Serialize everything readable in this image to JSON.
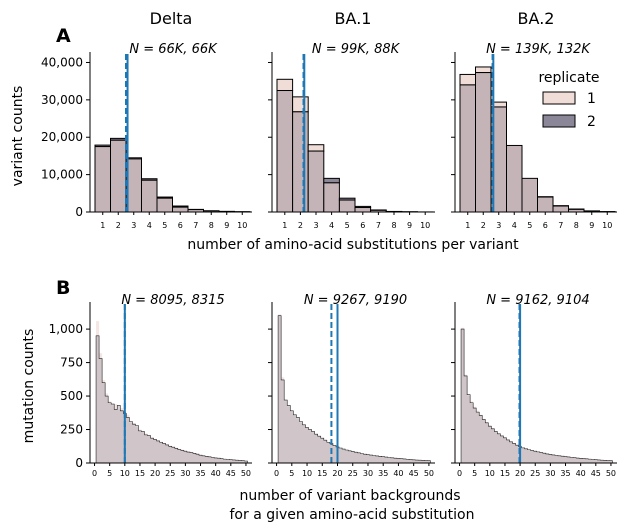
{
  "figure": {
    "xlabel_top": "number of amino-acid substitutions per variant",
    "xlabel_bottom_line1": "number of variant backgrounds",
    "xlabel_bottom_line2": "for a given amino-acid substitution",
    "legend_title": "replicate",
    "legend_labels": [
      "1",
      "2"
    ]
  },
  "colors": {
    "rep1_fill": "#f0ddd8",
    "rep2_fill": "#8c8798",
    "overlap_fill": "#c4b3b7",
    "edge": "#000000",
    "vline": "#1f77b4"
  },
  "chart_data": [
    {
      "type": "bar",
      "panel": "A",
      "column_title": "Delta",
      "subtitle": "N = 66K, 66K",
      "ylabel": "variant counts",
      "ylim": [
        0,
        42000
      ],
      "yticks": [
        0,
        10000,
        20000,
        30000,
        40000
      ],
      "categories": [
        "1",
        "2",
        "3",
        "4",
        "5",
        "6",
        "7",
        "8",
        "9",
        "10"
      ],
      "series": [
        {
          "name": "1",
          "values": [
            17500,
            19200,
            14500,
            8500,
            3700,
            1300,
            650,
            300,
            150,
            60
          ]
        },
        {
          "name": "2",
          "values": [
            17900,
            19700,
            14200,
            8900,
            4000,
            1600,
            700,
            320,
            160,
            70
          ]
        }
      ],
      "vlines": [
        {
          "x": 2.5,
          "style": "dashed"
        },
        {
          "x": 2.6,
          "style": "solid"
        }
      ]
    },
    {
      "type": "bar",
      "panel": "A",
      "column_title": "BA.1",
      "subtitle": "N = 99K, 88K",
      "ylim": [
        0,
        42000
      ],
      "categories": [
        "1",
        "2",
        "3",
        "4",
        "5",
        "6",
        "7",
        "8",
        "9",
        "10"
      ],
      "series": [
        {
          "name": "1",
          "values": [
            35500,
            30800,
            18000,
            7800,
            3200,
            1200,
            450,
            120,
            50,
            20
          ]
        },
        {
          "name": "2",
          "values": [
            32500,
            26800,
            16300,
            9000,
            3700,
            1500,
            550,
            150,
            60,
            20
          ]
        }
      ],
      "vlines": [
        {
          "x": 2.2,
          "style": "dashed"
        },
        {
          "x": 2.25,
          "style": "solid"
        }
      ]
    },
    {
      "type": "bar",
      "panel": "A",
      "column_title": "BA.2",
      "subtitle": "N = 139K, 132K",
      "ylim": [
        0,
        42000
      ],
      "categories": [
        "1",
        "2",
        "3",
        "4",
        "5",
        "6",
        "7",
        "8",
        "9",
        "10"
      ],
      "series": [
        {
          "name": "1",
          "values": [
            36800,
            38800,
            29400,
            17800,
            9000,
            4000,
            1600,
            700,
            250,
            80
          ]
        },
        {
          "name": "2",
          "values": [
            34000,
            37300,
            28100,
            17800,
            9000,
            4100,
            1700,
            800,
            300,
            100
          ]
        }
      ],
      "vlines": [
        {
          "x": 2.6,
          "style": "dashed"
        },
        {
          "x": 2.65,
          "style": "solid"
        }
      ]
    },
    {
      "type": "bar",
      "panel": "B",
      "subtitle": "N = 8095, 8315",
      "ylabel": "mutation counts",
      "ylim": [
        0,
        1180
      ],
      "yticks": [
        0,
        250,
        500,
        750,
        1000
      ],
      "xticks": [
        0,
        5,
        10,
        15,
        20,
        25,
        30,
        35,
        40,
        45,
        50
      ],
      "xlim": [
        -1.5,
        52
      ],
      "series": [
        {
          "name": "1",
          "x": [
            1,
            2,
            3,
            4,
            5,
            6,
            7,
            8,
            9,
            10,
            11,
            12,
            13,
            14,
            15,
            16,
            17,
            18,
            19,
            20,
            21,
            22,
            23,
            24,
            25,
            26,
            27,
            28,
            29,
            30,
            31,
            32,
            33,
            34,
            35,
            36,
            37,
            38,
            39,
            40,
            41,
            42,
            43,
            44,
            45,
            46,
            47,
            48,
            49,
            50
          ],
          "values": [
            1060,
            820,
            620,
            520,
            460,
            430,
            440,
            400,
            410,
            380,
            360,
            300,
            300,
            270,
            250,
            230,
            220,
            200,
            190,
            180,
            170,
            160,
            150,
            140,
            130,
            120,
            115,
            105,
            100,
            90,
            85,
            80,
            75,
            70,
            60,
            55,
            50,
            48,
            45,
            40,
            36,
            34,
            30,
            28,
            26,
            24,
            22,
            20,
            18,
            16
          ]
        },
        {
          "name": "2",
          "x": [
            1,
            2,
            3,
            4,
            5,
            6,
            7,
            8,
            9,
            10,
            11,
            12,
            13,
            14,
            15,
            16,
            17,
            18,
            19,
            20,
            21,
            22,
            23,
            24,
            25,
            26,
            27,
            28,
            29,
            30,
            31,
            32,
            33,
            34,
            35,
            36,
            37,
            38,
            39,
            40,
            41,
            42,
            43,
            44,
            45,
            46,
            47,
            48,
            49,
            50
          ],
          "values": [
            950,
            780,
            600,
            500,
            450,
            440,
            400,
            430,
            390,
            370,
            340,
            310,
            290,
            280,
            240,
            235,
            210,
            205,
            185,
            175,
            165,
            155,
            145,
            135,
            125,
            118,
            110,
            100,
            95,
            88,
            82,
            78,
            72,
            66,
            58,
            54,
            50,
            46,
            42,
            38,
            36,
            32,
            29,
            27,
            25,
            23,
            21,
            19,
            17,
            15
          ]
        }
      ],
      "vlines": [
        {
          "x": 10,
          "style": "dashed"
        },
        {
          "x": 10,
          "style": "solid"
        }
      ]
    },
    {
      "type": "bar",
      "panel": "B",
      "subtitle": "N = 9267, 9190",
      "ylim": [
        0,
        1180
      ],
      "xticks": [
        0,
        5,
        10,
        15,
        20,
        25,
        30,
        35,
        40,
        45,
        50
      ],
      "xlim": [
        -1.5,
        52
      ],
      "series": [
        {
          "name": "1",
          "x": [
            1,
            2,
            3,
            4,
            5,
            6,
            7,
            8,
            9,
            10,
            11,
            12,
            13,
            14,
            15,
            16,
            17,
            18,
            19,
            20,
            21,
            22,
            23,
            24,
            25,
            26,
            27,
            28,
            29,
            30,
            31,
            32,
            33,
            34,
            35,
            36,
            37,
            38,
            39,
            40,
            41,
            42,
            43,
            44,
            45,
            46,
            47,
            48,
            49,
            50
          ],
          "values": [
            1110,
            640,
            460,
            420,
            380,
            350,
            330,
            300,
            280,
            260,
            245,
            230,
            210,
            195,
            180,
            165,
            150,
            140,
            125,
            115,
            110,
            100,
            95,
            90,
            85,
            80,
            75,
            70,
            65,
            60,
            58,
            55,
            52,
            50,
            46,
            43,
            40,
            38,
            35,
            33,
            31,
            30,
            28,
            26,
            24,
            22,
            20,
            19,
            18,
            17
          ]
        },
        {
          "name": "2",
          "x": [
            1,
            2,
            3,
            4,
            5,
            6,
            7,
            8,
            9,
            10,
            11,
            12,
            13,
            14,
            15,
            16,
            17,
            18,
            19,
            20,
            21,
            22,
            23,
            24,
            25,
            26,
            27,
            28,
            29,
            30,
            31,
            32,
            33,
            34,
            35,
            36,
            37,
            38,
            39,
            40,
            41,
            42,
            43,
            44,
            45,
            46,
            47,
            48,
            49,
            50
          ],
          "values": [
            1100,
            620,
            470,
            430,
            390,
            360,
            340,
            310,
            285,
            265,
            250,
            235,
            215,
            200,
            185,
            170,
            155,
            145,
            130,
            120,
            112,
            104,
            97,
            91,
            86,
            81,
            76,
            71,
            66,
            62,
            59,
            56,
            53,
            50,
            47,
            44,
            41,
            39,
            36,
            34,
            32,
            30,
            28,
            26,
            24,
            22,
            21,
            20,
            18,
            17
          ]
        }
      ],
      "vlines": [
        {
          "x": 18,
          "style": "dashed"
        },
        {
          "x": 20,
          "style": "solid"
        }
      ]
    },
    {
      "type": "bar",
      "panel": "B",
      "subtitle": "N = 9162, 9104",
      "ylim": [
        0,
        1180
      ],
      "xticks": [
        0,
        5,
        10,
        15,
        20,
        25,
        30,
        35,
        40,
        45,
        50
      ],
      "xlim": [
        -1.5,
        52
      ],
      "series": [
        {
          "name": "1",
          "x": [
            1,
            2,
            3,
            4,
            5,
            6,
            7,
            8,
            9,
            10,
            11,
            12,
            13,
            14,
            15,
            16,
            17,
            18,
            19,
            20,
            21,
            22,
            23,
            24,
            25,
            26,
            27,
            28,
            29,
            30,
            31,
            32,
            33,
            34,
            35,
            36,
            37,
            38,
            39,
            40,
            41,
            42,
            43,
            44,
            45,
            46,
            47,
            48,
            49,
            50
          ],
          "values": [
            1010,
            660,
            500,
            460,
            420,
            390,
            360,
            330,
            305,
            280,
            260,
            240,
            220,
            205,
            190,
            175,
            160,
            150,
            135,
            125,
            115,
            108,
            100,
            95,
            90,
            85,
            80,
            75,
            70,
            66,
            62,
            58,
            55,
            52,
            49,
            46,
            43,
            40,
            38,
            36,
            34,
            32,
            30,
            28,
            26,
            24,
            22,
            20,
            19,
            18
          ]
        },
        {
          "name": "2",
          "x": [
            1,
            2,
            3,
            4,
            5,
            6,
            7,
            8,
            9,
            10,
            11,
            12,
            13,
            14,
            15,
            16,
            17,
            18,
            19,
            20,
            21,
            22,
            23,
            24,
            25,
            26,
            27,
            28,
            29,
            30,
            31,
            32,
            33,
            34,
            35,
            36,
            37,
            38,
            39,
            40,
            41,
            42,
            43,
            44,
            45,
            46,
            47,
            48,
            49,
            50
          ],
          "values": [
            1000,
            650,
            510,
            450,
            410,
            380,
            355,
            325,
            300,
            275,
            255,
            235,
            218,
            202,
            188,
            172,
            158,
            146,
            133,
            122,
            113,
            106,
            99,
            93,
            88,
            83,
            78,
            73,
            68,
            64,
            60,
            57,
            54,
            51,
            48,
            45,
            42,
            40,
            37,
            35,
            33,
            31,
            29,
            27,
            25,
            23,
            21,
            20,
            18,
            17
          ]
        }
      ],
      "vlines": [
        {
          "x": 19.8,
          "style": "dashed"
        },
        {
          "x": 20,
          "style": "solid"
        }
      ]
    }
  ],
  "panel_labels": [
    "A",
    "B"
  ]
}
